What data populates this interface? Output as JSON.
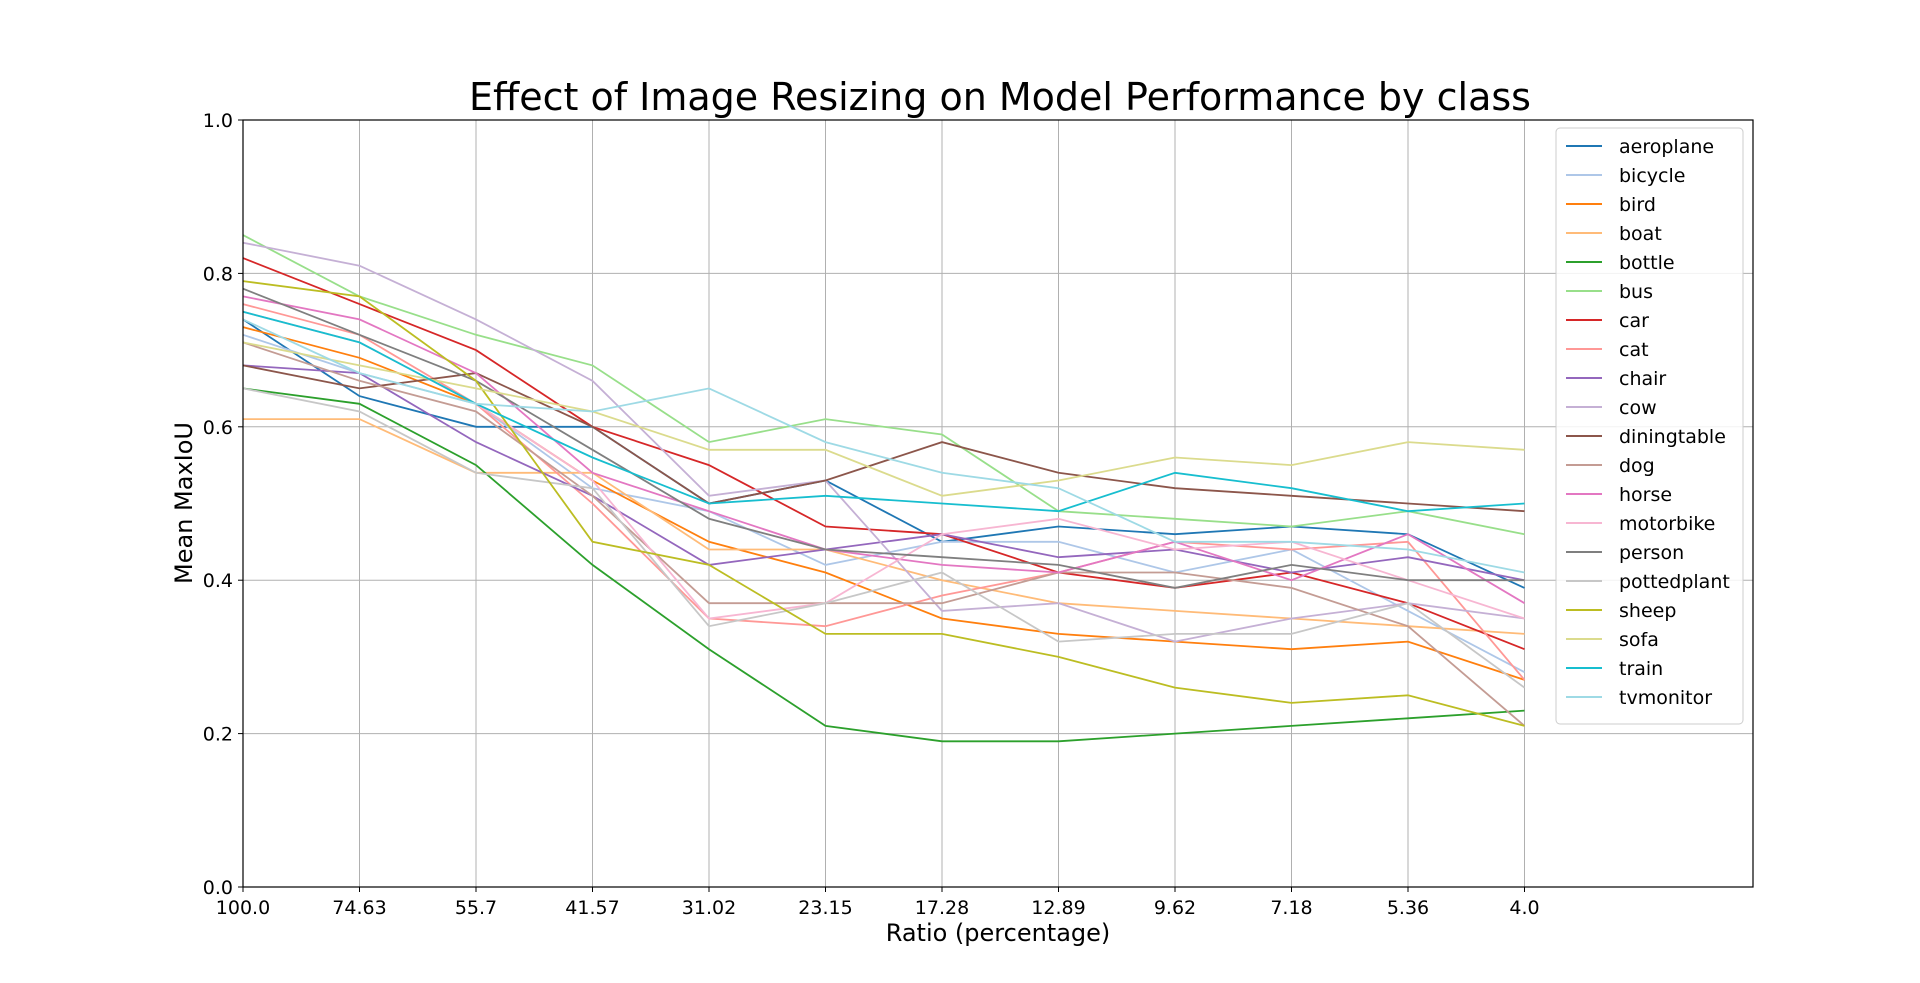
{
  "chart_data": {
    "type": "line",
    "title": "Effect of Image Resizing on Model Performance by class",
    "xlabel": "Ratio (percentage)",
    "ylabel": "Mean MaxIoU",
    "ylim": [
      0.0,
      1.0
    ],
    "yticks": [
      "0.0",
      "0.2",
      "0.4",
      "0.6",
      "0.8",
      "1.0"
    ],
    "categories": [
      "100.0",
      "74.63",
      "55.7",
      "41.57",
      "31.02",
      "23.15",
      "17.28",
      "12.89",
      "9.62",
      "7.18",
      "5.36",
      "4.0"
    ],
    "grid": true,
    "legend_position": "top-right",
    "series": [
      {
        "name": "aeroplane",
        "color": "#1f77b4",
        "values": [
          0.74,
          0.64,
          0.6,
          0.6,
          0.5,
          0.53,
          0.45,
          0.47,
          0.46,
          0.47,
          0.46,
          0.39
        ]
      },
      {
        "name": "bicycle",
        "color": "#aec7e8",
        "values": [
          0.72,
          0.67,
          0.63,
          0.52,
          0.49,
          0.42,
          0.45,
          0.45,
          0.41,
          0.44,
          0.36,
          0.28
        ]
      },
      {
        "name": "bird",
        "color": "#ff7f0e",
        "values": [
          0.73,
          0.69,
          0.63,
          0.53,
          0.45,
          0.41,
          0.35,
          0.33,
          0.32,
          0.31,
          0.32,
          0.27
        ]
      },
      {
        "name": "boat",
        "color": "#ffbb78",
        "values": [
          0.61,
          0.61,
          0.54,
          0.54,
          0.44,
          0.44,
          0.4,
          0.37,
          0.36,
          0.35,
          0.34,
          0.33
        ]
      },
      {
        "name": "bottle",
        "color": "#2ca02c",
        "values": [
          0.65,
          0.63,
          0.55,
          0.42,
          0.31,
          0.21,
          0.19,
          0.19,
          0.2,
          0.21,
          0.22,
          0.23
        ]
      },
      {
        "name": "bus",
        "color": "#98df8a",
        "values": [
          0.85,
          0.77,
          0.72,
          0.68,
          0.58,
          0.61,
          0.59,
          0.49,
          0.48,
          0.47,
          0.49,
          0.46
        ]
      },
      {
        "name": "car",
        "color": "#d62728",
        "values": [
          0.82,
          0.76,
          0.7,
          0.6,
          0.55,
          0.47,
          0.46,
          0.41,
          0.39,
          0.41,
          0.37,
          0.31
        ]
      },
      {
        "name": "cat",
        "color": "#ff9896",
        "values": [
          0.76,
          0.72,
          0.63,
          0.5,
          0.35,
          0.34,
          0.38,
          0.41,
          0.45,
          0.44,
          0.45,
          0.27
        ]
      },
      {
        "name": "chair",
        "color": "#9467bd",
        "values": [
          0.68,
          0.67,
          0.58,
          0.51,
          0.42,
          0.44,
          0.46,
          0.43,
          0.44,
          0.41,
          0.43,
          0.4
        ]
      },
      {
        "name": "cow",
        "color": "#c5b0d5",
        "values": [
          0.84,
          0.81,
          0.74,
          0.66,
          0.51,
          0.53,
          0.36,
          0.37,
          0.32,
          0.35,
          0.37,
          0.35
        ]
      },
      {
        "name": "diningtable",
        "color": "#8c564b",
        "values": [
          0.68,
          0.65,
          0.67,
          0.6,
          0.5,
          0.53,
          0.58,
          0.54,
          0.52,
          0.51,
          0.5,
          0.49
        ]
      },
      {
        "name": "dog",
        "color": "#c49c94",
        "values": [
          0.71,
          0.66,
          0.62,
          0.51,
          0.37,
          0.37,
          0.37,
          0.41,
          0.41,
          0.39,
          0.34,
          0.21
        ]
      },
      {
        "name": "horse",
        "color": "#e377c2",
        "values": [
          0.77,
          0.74,
          0.67,
          0.54,
          0.49,
          0.44,
          0.42,
          0.41,
          0.45,
          0.4,
          0.46,
          0.37
        ]
      },
      {
        "name": "motorbike",
        "color": "#f7b6d2",
        "values": [
          0.75,
          0.71,
          0.63,
          0.53,
          0.35,
          0.37,
          0.46,
          0.48,
          0.44,
          0.45,
          0.4,
          0.35
        ]
      },
      {
        "name": "person",
        "color": "#7f7f7f",
        "values": [
          0.78,
          0.72,
          0.66,
          0.57,
          0.48,
          0.44,
          0.43,
          0.42,
          0.39,
          0.42,
          0.4,
          0.4
        ]
      },
      {
        "name": "pottedplant",
        "color": "#c7c7c7",
        "values": [
          0.65,
          0.62,
          0.54,
          0.52,
          0.34,
          0.37,
          0.41,
          0.32,
          0.33,
          0.33,
          0.37,
          0.26
        ]
      },
      {
        "name": "sheep",
        "color": "#bcbd22",
        "values": [
          0.79,
          0.77,
          0.66,
          0.45,
          0.42,
          0.33,
          0.33,
          0.3,
          0.26,
          0.24,
          0.25,
          0.21
        ]
      },
      {
        "name": "sofa",
        "color": "#dbdb8d",
        "values": [
          0.71,
          0.68,
          0.65,
          0.62,
          0.57,
          0.57,
          0.51,
          0.53,
          0.56,
          0.55,
          0.58,
          0.57
        ]
      },
      {
        "name": "train",
        "color": "#17becf",
        "values": [
          0.75,
          0.71,
          0.63,
          0.56,
          0.5,
          0.51,
          0.5,
          0.49,
          0.54,
          0.52,
          0.49,
          0.5
        ]
      },
      {
        "name": "tvmonitor",
        "color": "#9edae5",
        "values": [
          0.74,
          0.67,
          0.63,
          0.62,
          0.65,
          0.58,
          0.54,
          0.52,
          0.45,
          0.45,
          0.44,
          0.41
        ]
      }
    ]
  }
}
